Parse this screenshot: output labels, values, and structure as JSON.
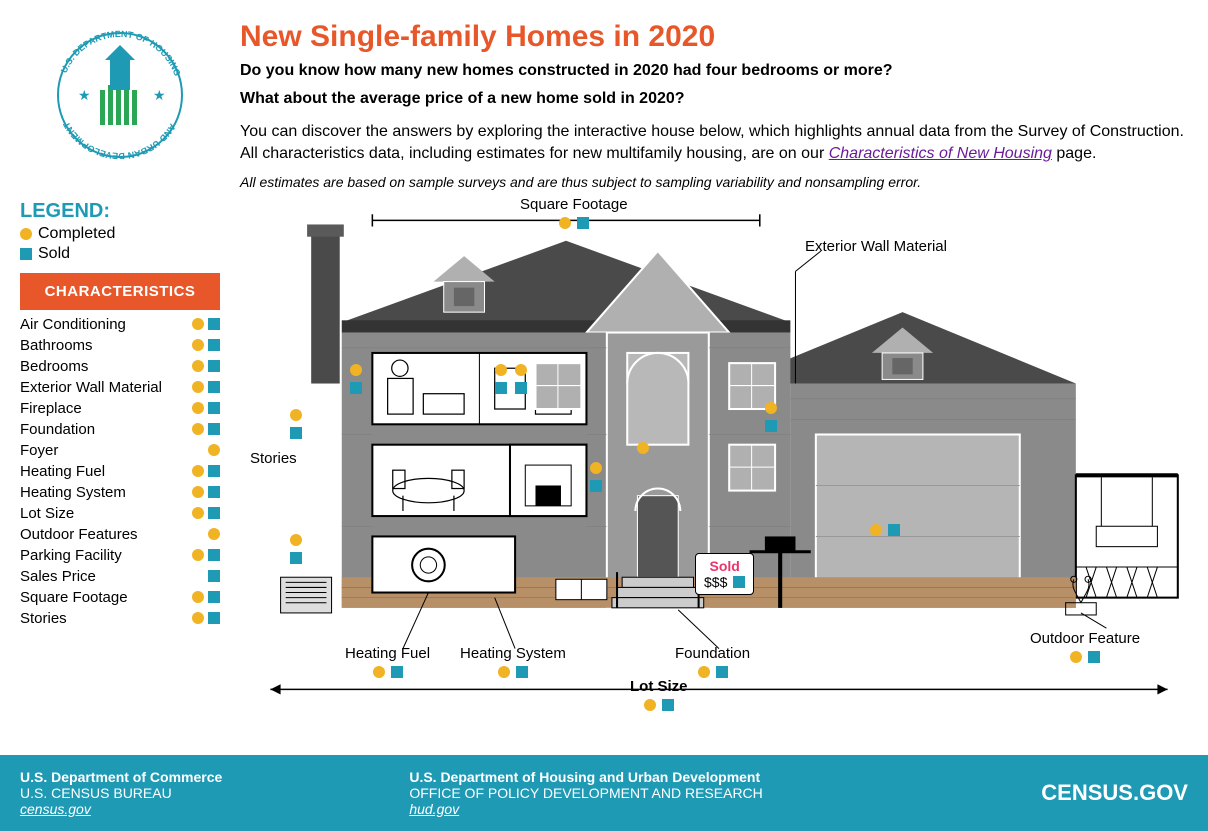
{
  "colors": {
    "title": "#e8572a",
    "accent_yellow": "#f0b323",
    "accent_teal": "#1f9ab5",
    "char_btn": "#e8572a",
    "legend_title": "#1f9ab5",
    "link": "#6a1b9a",
    "footer_bg": "#1f9ab5",
    "house_roof": "#4a4a4a",
    "house_wall": "#8a8a8a",
    "house_trim": "#b0b0b0",
    "brick": "#b89068",
    "sold": "#e8356b"
  },
  "header": {
    "title": "New Single-family Homes in 2020",
    "sub1": "Do you know how many new homes constructed in 2020 had four bedrooms or more?",
    "sub2": "What about the average price of a new home sold in 2020?",
    "desc1": "You can discover the answers by exploring the interactive house below, which highlights annual data from the Survey of Construction. All characteristics data, including estimates for new multifamily housing, are on our ",
    "link_text": "Characteristics of New Housing",
    "desc2": " page.",
    "note": "All estimates are based on sample surveys and are thus subject to sampling variability and nonsampling error."
  },
  "legend": {
    "title": "LEGEND:",
    "completed": "Completed",
    "sold": "Sold"
  },
  "characteristics_label": "CHARACTERISTICS",
  "characteristics": [
    {
      "label": "Air Conditioning",
      "completed": true,
      "sold": true
    },
    {
      "label": "Bathrooms",
      "completed": true,
      "sold": true
    },
    {
      "label": "Bedrooms",
      "completed": true,
      "sold": true
    },
    {
      "label": "Exterior Wall Material",
      "completed": true,
      "sold": true
    },
    {
      "label": "Fireplace",
      "completed": true,
      "sold": true
    },
    {
      "label": "Foundation",
      "completed": true,
      "sold": true
    },
    {
      "label": "Foyer",
      "completed": true,
      "sold": false
    },
    {
      "label": "Heating Fuel",
      "completed": true,
      "sold": true
    },
    {
      "label": "Heating System",
      "completed": true,
      "sold": true
    },
    {
      "label": "Lot Size",
      "completed": true,
      "sold": true
    },
    {
      "label": "Outdoor Features",
      "completed": true,
      "sold": false
    },
    {
      "label": "Parking Facility",
      "completed": true,
      "sold": true
    },
    {
      "label": "Sales Price",
      "completed": false,
      "sold": true
    },
    {
      "label": "Square Footage",
      "completed": true,
      "sold": true
    },
    {
      "label": "Stories",
      "completed": true,
      "sold": true
    }
  ],
  "callouts": {
    "square_footage": "Square Footage",
    "exterior_wall": "Exterior Wall Material",
    "stories": "Stories",
    "heating_fuel": "Heating Fuel",
    "heating_system": "Heating System",
    "foundation": "Foundation",
    "outdoor_feature": "Outdoor Feature",
    "lot_size": "Lot Size",
    "sold": "Sold",
    "price": "$$$"
  },
  "footer": {
    "dept1": "U.S. Department of Commerce",
    "bureau1": "U.S. CENSUS BUREAU",
    "link1": "census.gov",
    "dept2": "U.S. Department of Housing and Urban Development",
    "bureau2": "OFFICE OF POLICY DEVELOPMENT AND RESEARCH",
    "link2": "hud.gov",
    "brand": "CENSUS.GOV"
  },
  "logo": {
    "org": "U.S. DEPARTMENT OF HOUSING AND URBAN DEVELOPMENT"
  }
}
